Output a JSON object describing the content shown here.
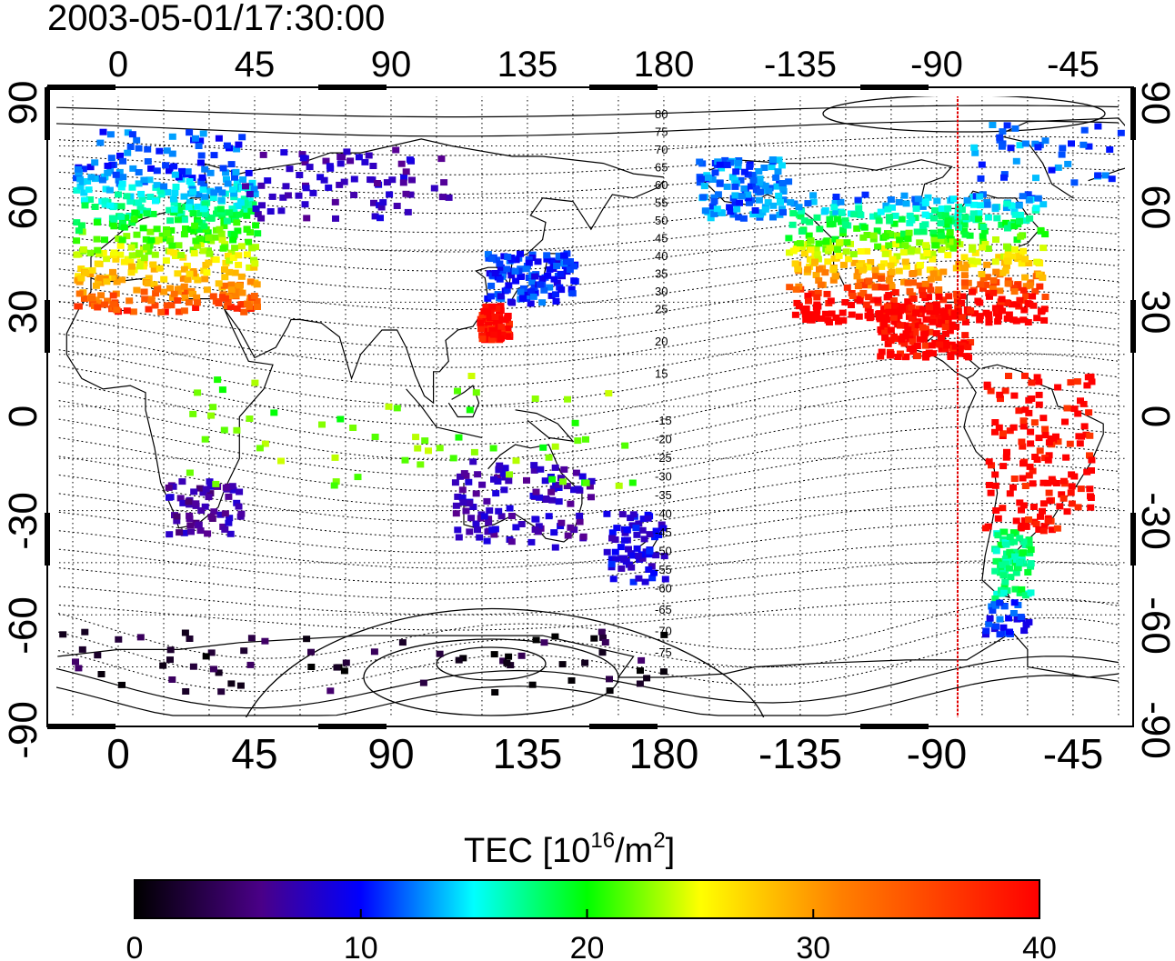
{
  "title": "2003-05-01/17:30:00",
  "map": {
    "lon_ticks": [
      "0",
      "45",
      "90",
      "135",
      "180",
      "-135",
      "-90",
      "-45"
    ],
    "lat_ticks": [
      "90",
      "60",
      "30",
      "0",
      "-30",
      "-60",
      "-90"
    ],
    "contour_labels_north": [
      "80",
      "75",
      "70",
      "65",
      "60",
      "55",
      "50",
      "45",
      "40",
      "35",
      "30",
      "25",
      "20",
      "15"
    ],
    "contour_labels_south": [
      "-15",
      "-20",
      "-25",
      "-30",
      "-35",
      "-40",
      "-45",
      "-50",
      "-55",
      "-60",
      "-65",
      "-70",
      "-75"
    ],
    "terminator_color": "#e00000"
  },
  "colorbar": {
    "label_main": "TEC  [10",
    "label_sup1": "16",
    "label_mid": "/m",
    "label_sup2": "2",
    "label_end": "]",
    "ticks": [
      "0",
      "10",
      "20",
      "30",
      "40"
    ],
    "min": 0,
    "max": 40,
    "colors": [
      "#000000",
      "#5a0090",
      "#0000ff",
      "#00ffff",
      "#00ff00",
      "#ffff00",
      "#ff8000",
      "#ff0000"
    ]
  }
}
